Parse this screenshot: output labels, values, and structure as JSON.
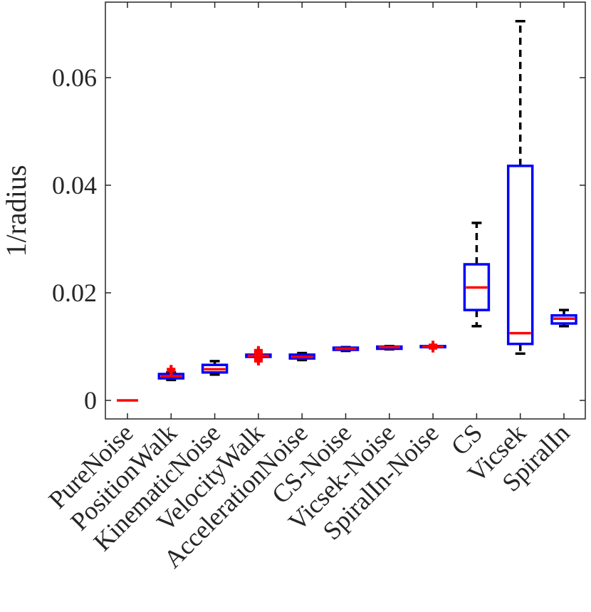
{
  "chart_data": {
    "type": "box",
    "title": "",
    "xlabel": "",
    "ylabel": "1/radius",
    "ylim": [
      -0.0035,
      0.075
    ],
    "yticks": [
      0,
      0.02,
      0.04,
      0.06
    ],
    "ytick_labels": [
      "0",
      "0.02",
      "0.04",
      "0.06"
    ],
    "grid": false,
    "colors": {
      "box": "#0000ff",
      "median": "#ff0000",
      "whisker": "#000000",
      "outlier": "#ff0000",
      "axis": "#262626"
    },
    "categories": [
      "PureNoise",
      "PositionWalk",
      "KinematicNoise",
      "VelocityWalk",
      "AccelerationNoise",
      "CS-Noise",
      "Vicsek-Noise",
      "SpiralIn-Noise",
      "CS",
      "Vicsek",
      "SpiralIn"
    ],
    "boxes": [
      {
        "category": "PureNoise",
        "whisker_low": 0.0,
        "q1": 0.0,
        "median": 0.0,
        "q3": 0.0,
        "whisker_high": 0.0,
        "outliers": []
      },
      {
        "category": "PositionWalk",
        "whisker_low": 0.0038,
        "q1": 0.0041,
        "median": 0.0045,
        "q3": 0.0049,
        "whisker_high": 0.0052,
        "outliers": [
          0.0055,
          0.0058
        ]
      },
      {
        "category": "KinematicNoise",
        "whisker_low": 0.0048,
        "q1": 0.0052,
        "median": 0.0058,
        "q3": 0.0066,
        "whisker_high": 0.0073,
        "outliers": []
      },
      {
        "category": "VelocityWalk",
        "whisker_low": 0.0081,
        "q1": 0.0081,
        "median": 0.0083,
        "q3": 0.0085,
        "whisker_high": 0.0085,
        "outliers": [
          0.0073,
          0.0076,
          0.0078,
          0.0088,
          0.0091,
          0.0093
        ]
      },
      {
        "category": "AccelerationNoise",
        "whisker_low": 0.0075,
        "q1": 0.0078,
        "median": 0.0081,
        "q3": 0.0085,
        "whisker_high": 0.0088,
        "outliers": []
      },
      {
        "category": "CS-Noise",
        "whisker_low": 0.0092,
        "q1": 0.0094,
        "median": 0.0096,
        "q3": 0.0098,
        "whisker_high": 0.0099,
        "outliers": []
      },
      {
        "category": "Vicsek-Noise",
        "whisker_low": 0.0095,
        "q1": 0.0096,
        "median": 0.0099,
        "q3": 0.01,
        "whisker_high": 0.0101,
        "outliers": []
      },
      {
        "category": "SpiralIn-Noise",
        "whisker_low": 0.0099,
        "q1": 0.0099,
        "median": 0.01,
        "q3": 0.0101,
        "whisker_high": 0.0101,
        "outliers": [
          0.0097,
          0.0103
        ]
      },
      {
        "category": "CS",
        "whisker_low": 0.0138,
        "q1": 0.0168,
        "median": 0.021,
        "q3": 0.0253,
        "whisker_high": 0.033,
        "outliers": []
      },
      {
        "category": "Vicsek",
        "whisker_low": 0.0087,
        "q1": 0.0105,
        "median": 0.0125,
        "q3": 0.0436,
        "whisker_high": 0.0705,
        "outliers": []
      },
      {
        "category": "SpiralIn",
        "whisker_low": 0.0138,
        "q1": 0.0143,
        "median": 0.0152,
        "q3": 0.0158,
        "whisker_high": 0.0168,
        "outliers": []
      }
    ]
  }
}
